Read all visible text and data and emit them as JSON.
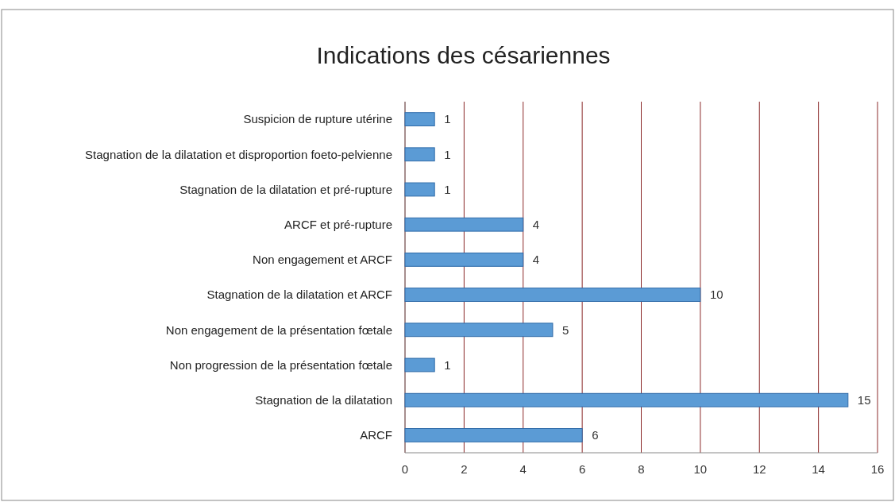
{
  "chart_data": {
    "type": "bar",
    "orientation": "horizontal",
    "title": "Indications des césariennes",
    "categories": [
      "Suspicion de rupture utérine",
      "Stagnation de la dilatation et disproportion foeto-pelvienne",
      "Stagnation de la dilatation et pré-rupture",
      "ARCF et pré-rupture",
      "Non engagement et ARCF",
      "Stagnation de la dilatation et ARCF",
      "Non engagement de la présentation fœtale",
      "Non progression de la présentation fœtale",
      "Stagnation de la dilatation",
      "ARCF"
    ],
    "values": [
      1,
      1,
      1,
      4,
      4,
      10,
      5,
      1,
      15,
      6
    ],
    "color": "#5b9bd5",
    "xlim": [
      0,
      16
    ],
    "xticks": [
      0,
      2,
      4,
      6,
      8,
      10,
      12,
      14,
      16
    ],
    "grid": "x",
    "data_labels": true
  }
}
